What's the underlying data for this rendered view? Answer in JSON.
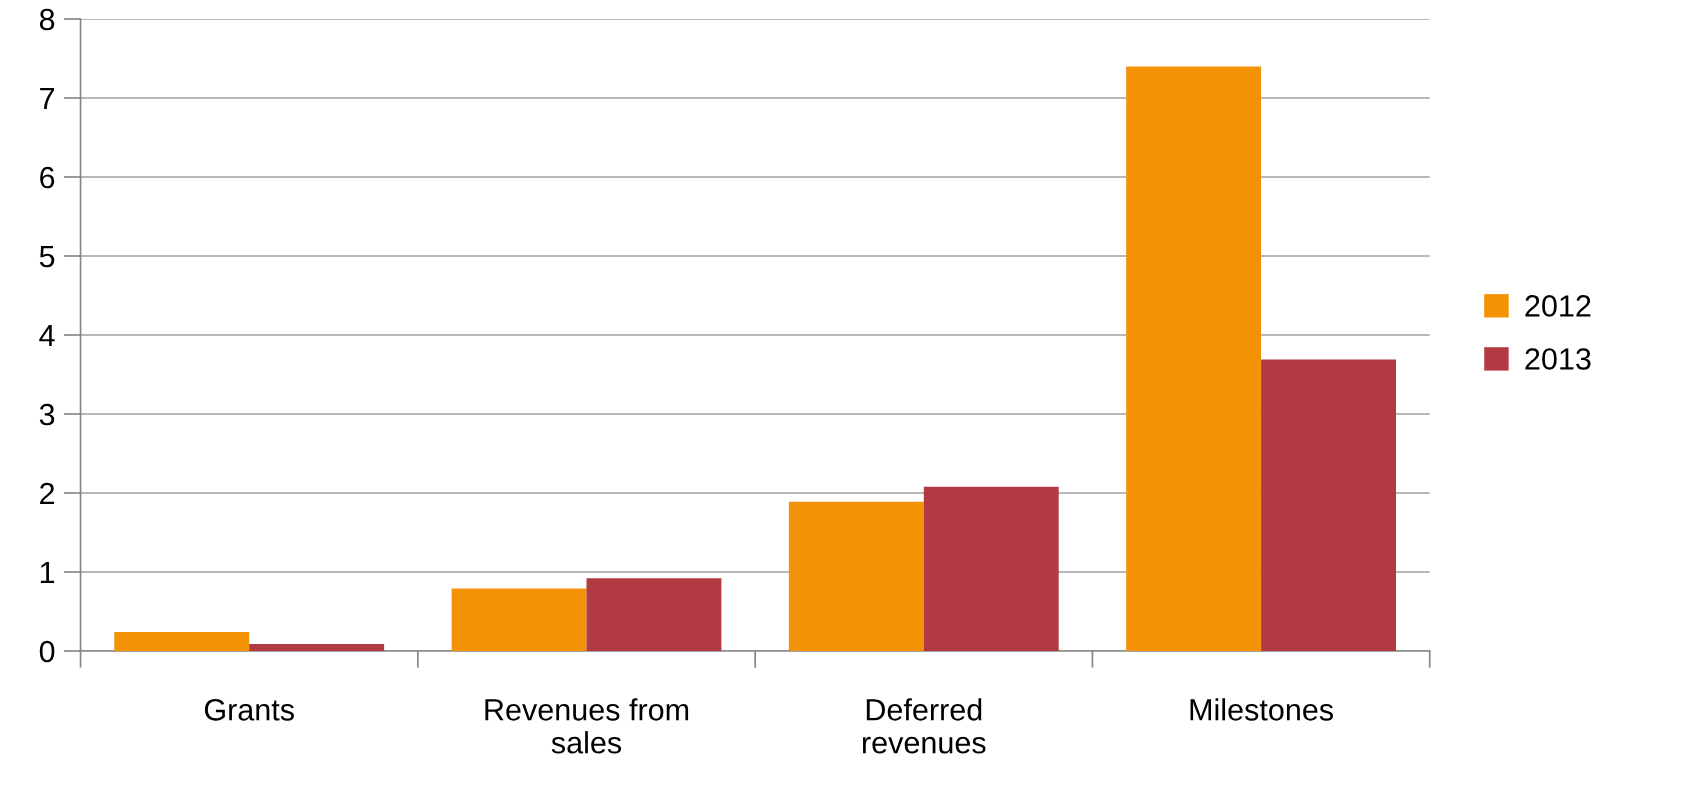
{
  "chart_data": {
    "type": "bar",
    "categories": [
      "Grants",
      "Revenues from\nsales",
      "Deferred\nrevenues",
      "Milestones"
    ],
    "series": [
      {
        "name": "2012",
        "color": "#f39205",
        "values": [
          0.24,
          0.79,
          1.89,
          7.4
        ]
      },
      {
        "name": "2013",
        "color": "#b23a43",
        "values": [
          0.09,
          0.92,
          2.08,
          3.69
        ]
      }
    ],
    "ylim": [
      0,
      8
    ],
    "yticks": [
      0,
      1,
      2,
      3,
      4,
      5,
      6,
      7,
      8
    ],
    "grid": "y",
    "legend": "right"
  }
}
